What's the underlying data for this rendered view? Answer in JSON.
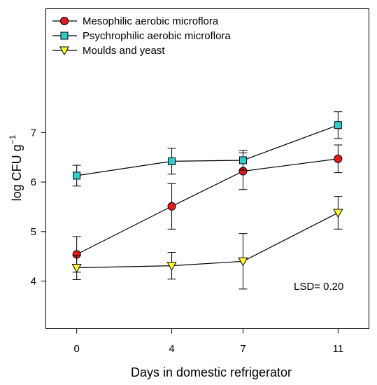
{
  "chart_data": {
    "type": "line",
    "xlabel": "Days in domestic refrigerator",
    "ylabel_main": "log CFU g",
    "ylabel_sup": "−1",
    "x_ticks": [
      "0",
      "4",
      "7",
      "11"
    ],
    "y_ticks": [
      "4",
      "5",
      "6",
      "7"
    ],
    "xlim": [
      -1.3,
      12.3
    ],
    "ylim": [
      3.04,
      9.5
    ],
    "annotation": "LSD= 0.20",
    "legend_position": "top-left",
    "grid": false,
    "series": [
      {
        "name": "Mesophilic aerobic microflora",
        "marker": "circle",
        "color": "#e41a1c",
        "x": [
          0,
          4,
          7,
          11
        ],
        "y": [
          4.54,
          5.51,
          6.22,
          6.47
        ],
        "err": [
          0.36,
          0.46,
          0.37,
          0.28
        ]
      },
      {
        "name": "Psychrophilic aerobic microflora",
        "marker": "square",
        "color": "#33cccc",
        "x": [
          0,
          4,
          7,
          11
        ],
        "y": [
          6.13,
          6.42,
          6.44,
          7.15
        ],
        "err": [
          0.21,
          0.26,
          0.2,
          0.27
        ]
      },
      {
        "name": "Moulds and yeast",
        "marker": "triangle-down",
        "color": "#ffff33",
        "x": [
          0,
          4,
          7,
          11
        ],
        "y": [
          4.27,
          4.31,
          4.4,
          5.38
        ],
        "err": [
          0.24,
          0.27,
          0.56,
          0.33
        ]
      }
    ]
  }
}
